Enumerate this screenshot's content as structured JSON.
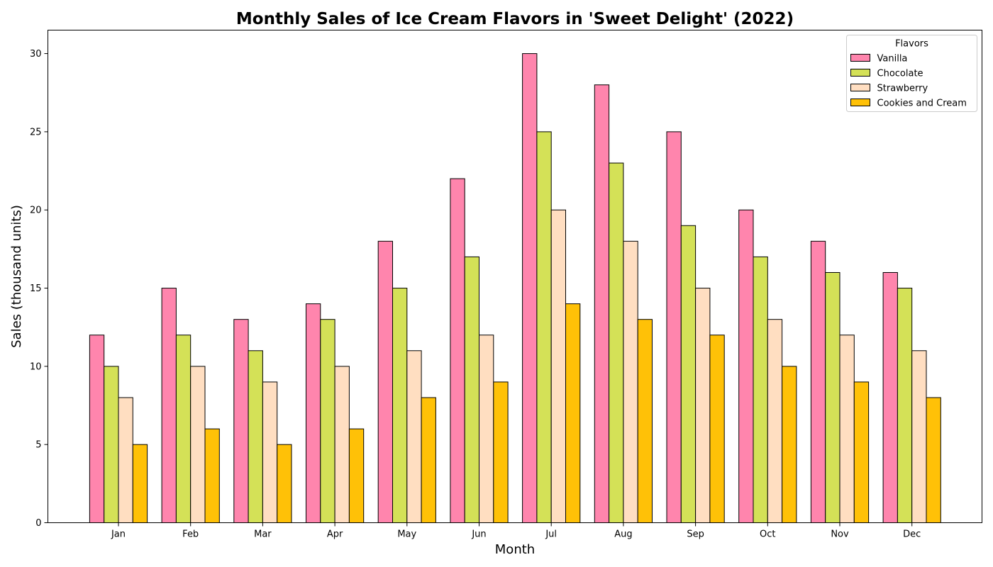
{
  "chart_data": {
    "type": "bar",
    "title": "Monthly Sales of Ice Cream Flavors in 'Sweet Delight' (2022)",
    "xlabel": "Month",
    "ylabel": "Sales (thousand units)",
    "ylim": [
      0,
      31.5
    ],
    "yticks": [
      0,
      5,
      10,
      15,
      20,
      25,
      30
    ],
    "grid": false,
    "legend": {
      "title": "Flavors",
      "placement": "top-right"
    },
    "categories": [
      "Jan",
      "Feb",
      "Mar",
      "Apr",
      "May",
      "Jun",
      "Jul",
      "Aug",
      "Sep",
      "Oct",
      "Nov",
      "Dec"
    ],
    "series": [
      {
        "name": "Vanilla",
        "color": "#ff85ad",
        "values": [
          12,
          15,
          13,
          14,
          18,
          22,
          30,
          28,
          25,
          20,
          18,
          16
        ]
      },
      {
        "name": "Chocolate",
        "color": "#d4e157",
        "values": [
          10,
          12,
          11,
          13,
          15,
          17,
          25,
          23,
          19,
          17,
          16,
          15
        ]
      },
      {
        "name": "Strawberry",
        "color": "#ffdec1",
        "values": [
          8,
          10,
          9,
          10,
          11,
          12,
          20,
          18,
          15,
          13,
          12,
          11
        ]
      },
      {
        "name": "Cookies and Cream",
        "color": "#ffc107",
        "values": [
          5,
          6,
          5,
          6,
          8,
          9,
          14,
          13,
          12,
          10,
          9,
          8
        ]
      }
    ]
  }
}
